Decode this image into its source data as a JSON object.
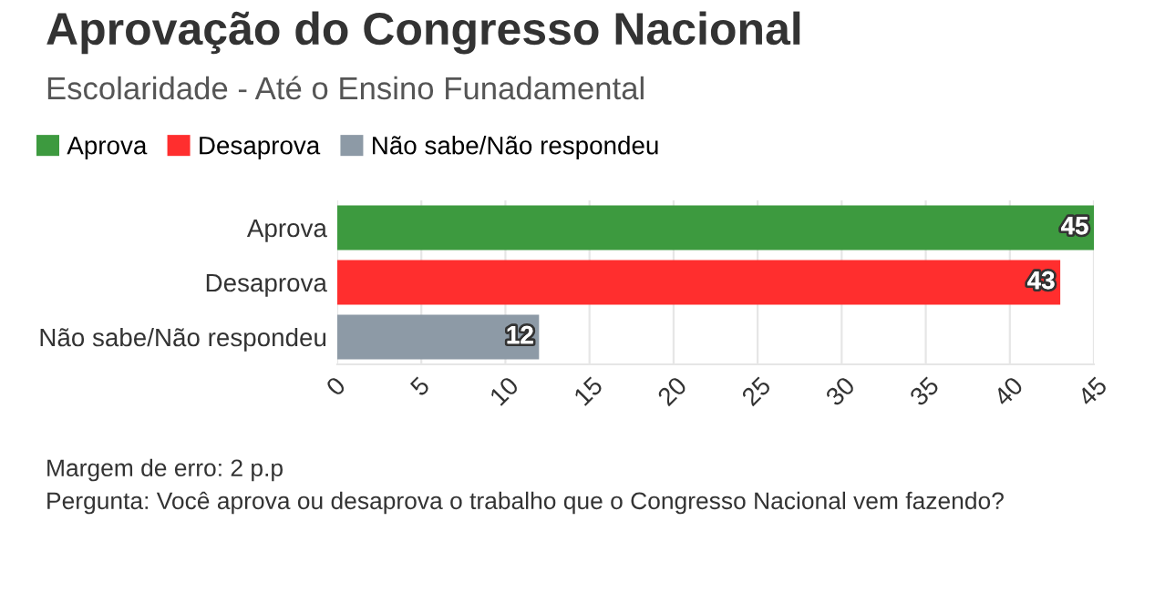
{
  "chart_data": {
    "type": "bar",
    "orientation": "horizontal",
    "title": "Aprovação do Congresso Nacional",
    "subtitle": "Escolaridade - Até o Ensino Funadamental",
    "categories": [
      "Aprova",
      "Desaprova",
      "Não sabe/Não respondeu"
    ],
    "series": [
      {
        "name": "Aprova",
        "color": "#3d9a3f",
        "values": [
          45,
          null,
          null
        ]
      },
      {
        "name": "Desaprova",
        "color": "#ff2e2e",
        "values": [
          null,
          43,
          null
        ]
      },
      {
        "name": "Não sabe/Não respondeu",
        "color": "#8d9aa6",
        "values": [
          null,
          null,
          12
        ]
      }
    ],
    "xlim": [
      0,
      45
    ],
    "xticks": [
      0,
      5,
      10,
      15,
      20,
      25,
      30,
      35,
      40,
      45
    ],
    "grid": "x",
    "legend": "top left",
    "data_labels": true,
    "annotations": [
      "Margem de erro: 2 p.p",
      "Pergunta: Você aprova ou desaprova o trabalho que o Congresso Nacional vem fazendo?"
    ]
  }
}
